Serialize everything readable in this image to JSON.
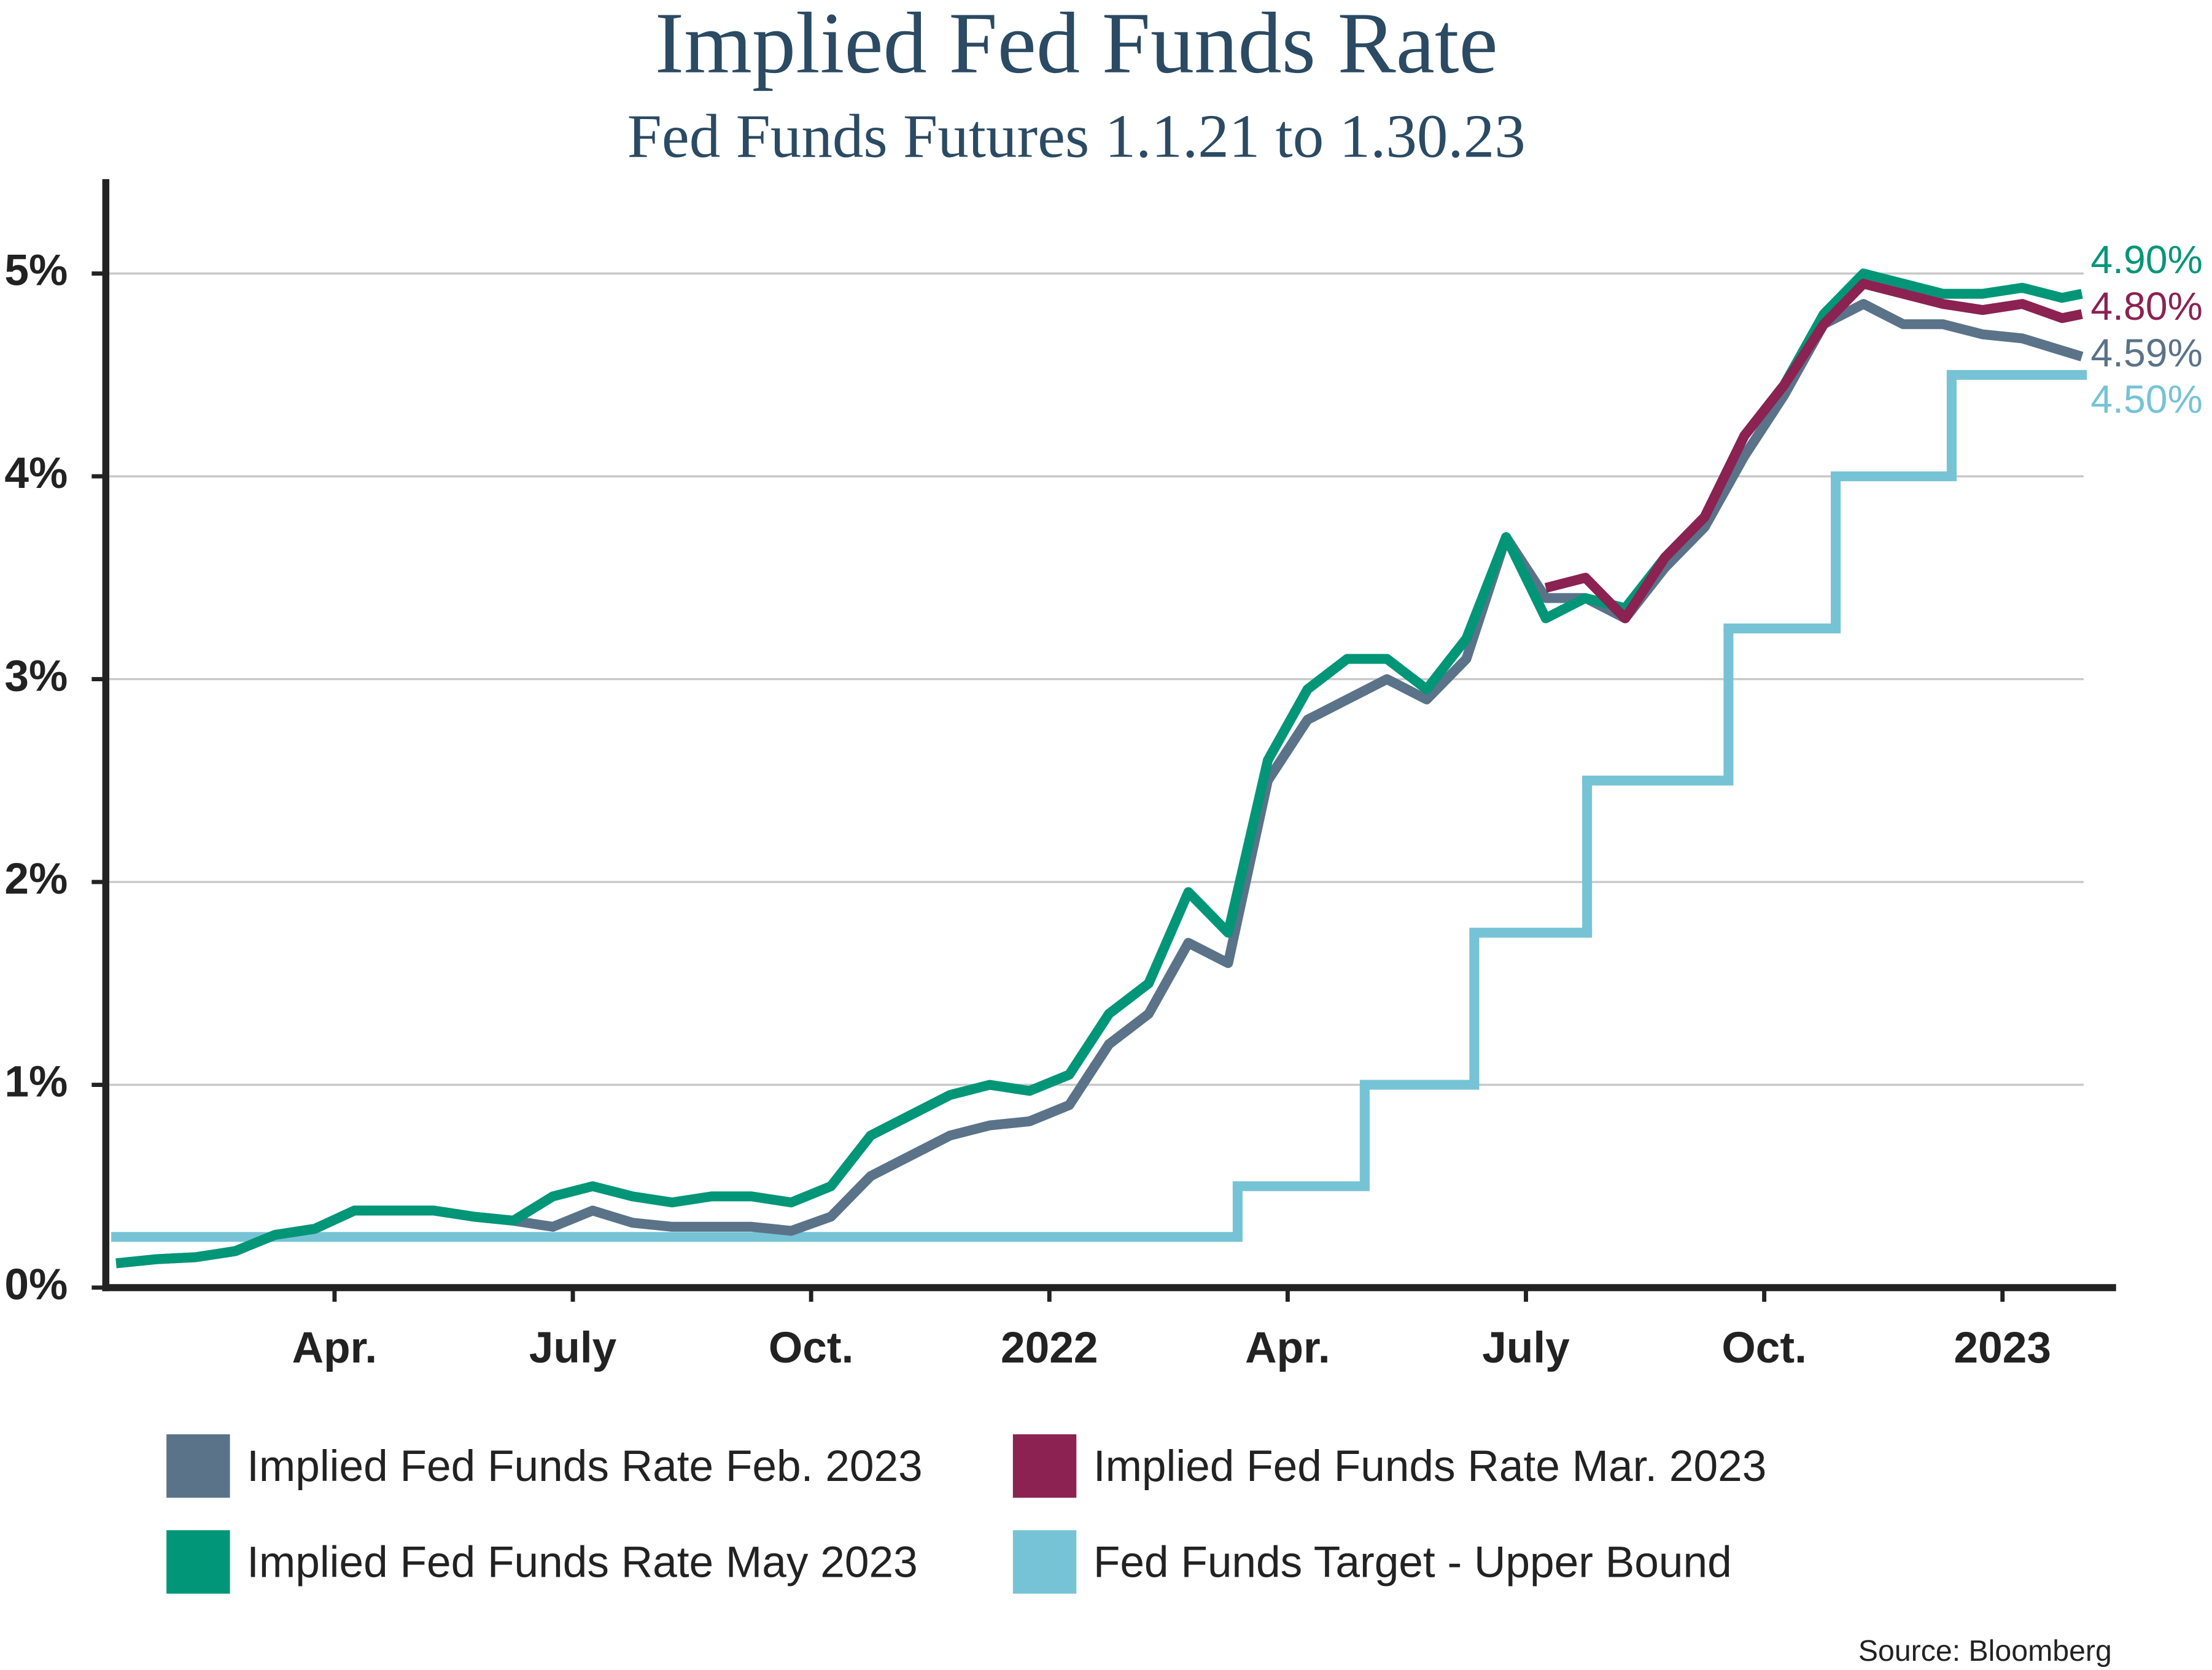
{
  "chart_data": {
    "type": "line",
    "title": "Implied Fed Funds Rate",
    "subtitle": "Fed Funds Futures 1.1.21 to 1.30.23",
    "source": "Source: Bloomberg",
    "x": [
      0.25,
      0.75,
      1.25,
      1.75,
      2.25,
      2.75,
      3.25,
      3.75,
      4.25,
      4.75,
      5.25,
      5.75,
      6.25,
      6.75,
      7.25,
      7.75,
      8.25,
      8.75,
      9.25,
      9.75,
      10.25,
      10.75,
      11.25,
      11.75,
      12.25,
      12.75,
      13.25,
      13.75,
      14.25,
      14.75,
      15.25,
      15.75,
      16.25,
      16.75,
      17.25,
      17.75,
      18.25,
      18.75,
      19.25,
      19.75,
      20.25,
      20.75,
      21.25,
      21.75,
      22.25,
      22.75,
      23.25,
      23.75,
      24.25,
      24.75,
      25
    ],
    "xlim": [
      0.12,
      25.43
    ],
    "xticks": [
      {
        "value": 3,
        "label": "Apr."
      },
      {
        "value": 6,
        "label": "July"
      },
      {
        "value": 9,
        "label": "Oct."
      },
      {
        "value": 12,
        "label": "2022"
      },
      {
        "value": 15,
        "label": "Apr."
      },
      {
        "value": 18,
        "label": "July"
      },
      {
        "value": 21,
        "label": "Oct."
      },
      {
        "value": 24,
        "label": "2023"
      }
    ],
    "ylim": [
      0,
      5.5
    ],
    "yticks": [
      {
        "value": 0,
        "label": "0%"
      },
      {
        "value": 1,
        "label": "1%"
      },
      {
        "value": 2,
        "label": "2%"
      },
      {
        "value": 3,
        "label": "3%"
      },
      {
        "value": 4,
        "label": "4%"
      },
      {
        "value": 5,
        "label": "5%"
      }
    ],
    "grid": true,
    "series": [
      {
        "name": "Implied Fed Funds Rate Feb. 2023",
        "color": "#5a7389",
        "values": [
          0.12,
          0.14,
          0.15,
          0.18,
          0.26,
          0.29,
          0.38,
          0.38,
          0.38,
          0.35,
          0.33,
          0.3,
          0.38,
          0.32,
          0.3,
          0.3,
          0.3,
          0.28,
          0.35,
          0.55,
          0.65,
          0.75,
          0.8,
          0.82,
          0.9,
          1.2,
          1.35,
          1.7,
          1.6,
          2.5,
          2.8,
          2.9,
          3.0,
          2.9,
          3.1,
          3.7,
          3.4,
          3.4,
          3.3,
          3.55,
          3.75,
          4.1,
          4.4,
          4.75,
          4.85,
          4.75,
          4.75,
          4.7,
          4.68,
          4.62,
          4.59
        ],
        "value_labels": [
          null,
          null,
          null,
          null,
          null,
          null,
          null,
          null,
          null,
          null,
          null,
          null,
          null,
          null,
          null,
          null,
          null,
          null,
          null,
          null,
          null,
          null,
          null,
          null,
          null,
          null,
          null,
          null,
          null,
          null,
          null,
          null,
          null,
          null,
          null,
          null,
          null,
          null,
          null,
          null,
          null,
          null,
          null,
          null,
          null,
          null,
          null,
          null,
          null,
          null,
          "4.59%"
        ]
      },
      {
        "name": "Implied Fed Funds Rate Mar. 2023",
        "color": "#8b2252",
        "values": [
          null,
          null,
          null,
          null,
          null,
          null,
          null,
          null,
          null,
          null,
          null,
          null,
          null,
          null,
          null,
          null,
          null,
          null,
          null,
          null,
          null,
          null,
          null,
          null,
          null,
          null,
          null,
          null,
          null,
          null,
          null,
          null,
          null,
          null,
          null,
          null,
          3.45,
          3.5,
          3.3,
          3.6,
          3.8,
          4.2,
          4.45,
          4.75,
          4.95,
          4.9,
          4.85,
          4.82,
          4.85,
          4.78,
          4.8
        ],
        "value_labels": [
          null,
          null,
          null,
          null,
          null,
          null,
          null,
          null,
          null,
          null,
          null,
          null,
          null,
          null,
          null,
          null,
          null,
          null,
          null,
          null,
          null,
          null,
          null,
          null,
          null,
          null,
          null,
          null,
          null,
          null,
          null,
          null,
          null,
          null,
          null,
          null,
          null,
          null,
          null,
          null,
          null,
          null,
          null,
          null,
          null,
          null,
          null,
          null,
          null,
          null,
          "4.80%"
        ]
      },
      {
        "name": "Implied Fed Funds Rate May 2023",
        "color": "#009677",
        "values": [
          0.12,
          0.14,
          0.15,
          0.18,
          0.26,
          0.29,
          0.38,
          0.38,
          0.38,
          0.35,
          0.33,
          0.45,
          0.5,
          0.45,
          0.42,
          0.45,
          0.45,
          0.42,
          0.5,
          0.75,
          0.85,
          0.95,
          1.0,
          0.97,
          1.05,
          1.35,
          1.5,
          1.95,
          1.75,
          2.6,
          2.95,
          3.1,
          3.1,
          2.95,
          3.2,
          3.7,
          3.3,
          3.4,
          3.35,
          3.6,
          3.8,
          4.2,
          4.45,
          4.8,
          5.0,
          4.95,
          4.9,
          4.9,
          4.93,
          4.88,
          4.9
        ],
        "value_labels": [
          null,
          null,
          null,
          null,
          null,
          null,
          null,
          null,
          null,
          null,
          null,
          null,
          null,
          null,
          null,
          null,
          null,
          null,
          null,
          null,
          null,
          null,
          null,
          null,
          null,
          null,
          null,
          null,
          null,
          null,
          null,
          null,
          null,
          null,
          null,
          null,
          null,
          null,
          null,
          null,
          null,
          null,
          null,
          null,
          null,
          null,
          null,
          null,
          null,
          null,
          "4.90%"
        ]
      },
      {
        "name": "Fed Funds Target - Upper Bound",
        "color": "#76c3d6",
        "step": true,
        "x": [
          0.25,
          14.37,
          15.97,
          17.35,
          18.77,
          20.55,
          21.9,
          23.36,
          25
        ],
        "values": [
          0.25,
          0.5,
          1,
          1.75,
          2.5,
          3.25,
          4,
          4.5,
          4.5
        ],
        "value_labels": [
          null,
          null,
          null,
          null,
          null,
          null,
          null,
          null,
          "4.50%"
        ]
      }
    ]
  }
}
